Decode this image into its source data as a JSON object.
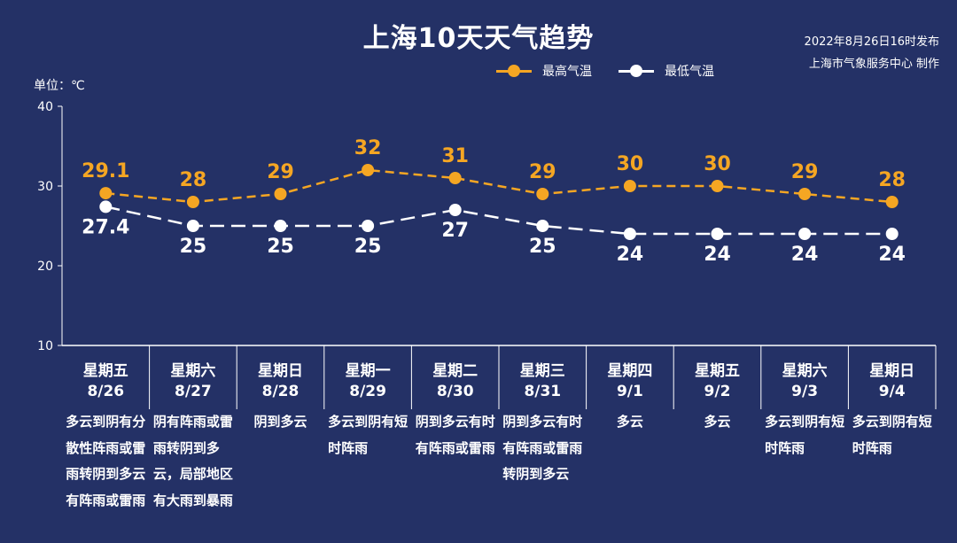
{
  "title": "上海10天天气趋势",
  "publish": {
    "date": "2022年8月26日16时发布",
    "org": "上海市气象服务中心 制作"
  },
  "unit_label": "单位：℃",
  "colors": {
    "high": "#f5a623",
    "low": "#ffffff",
    "background": "#243166"
  },
  "chart_data": {
    "type": "line",
    "ylim": [
      10,
      40
    ],
    "yticks": [
      "10",
      "20",
      "30",
      "40"
    ],
    "grid": false,
    "legend": "top-right",
    "categories": [
      "8/26",
      "8/27",
      "8/28",
      "8/29",
      "8/30",
      "8/31",
      "9/1",
      "9/2",
      "9/3",
      "9/4"
    ],
    "series": [
      {
        "name": "最高气温",
        "values": [
          29.1,
          28,
          29,
          32,
          31,
          29,
          30,
          30,
          29,
          28
        ],
        "labels": [
          "29.1",
          "28",
          "29",
          "32",
          "31",
          "29",
          "30",
          "30",
          "29",
          "28"
        ]
      },
      {
        "name": "最低气温",
        "values": [
          27.4,
          25,
          25,
          25,
          27,
          25,
          24,
          24,
          24,
          24
        ],
        "labels": [
          "27.4",
          "25",
          "25",
          "25",
          "27",
          "25",
          "24",
          "24",
          "24",
          "24"
        ]
      }
    ]
  },
  "days": [
    {
      "weekday": "星期五",
      "date": "8/26",
      "desc": "多云到阴有分散性阵雨或雷雨转阴到多云有阵雨或雷雨"
    },
    {
      "weekday": "星期六",
      "date": "8/27",
      "desc": "阴有阵雨或雷雨转阴到多云，局部地区有大雨到暴雨"
    },
    {
      "weekday": "星期日",
      "date": "8/28",
      "desc": "阴到多云"
    },
    {
      "weekday": "星期一",
      "date": "8/29",
      "desc": "多云到阴有短时阵雨"
    },
    {
      "weekday": "星期二",
      "date": "8/30",
      "desc": "阴到多云有时有阵雨或雷雨"
    },
    {
      "weekday": "星期三",
      "date": "8/31",
      "desc": "阴到多云有时有阵雨或雷雨转阴到多云"
    },
    {
      "weekday": "星期四",
      "date": "9/1",
      "desc": "多云"
    },
    {
      "weekday": "星期五",
      "date": "9/2",
      "desc": "多云"
    },
    {
      "weekday": "星期六",
      "date": "9/3",
      "desc": "多云到阴有短时阵雨"
    },
    {
      "weekday": "星期日",
      "date": "9/4",
      "desc": "多云到阴有短时阵雨"
    }
  ]
}
